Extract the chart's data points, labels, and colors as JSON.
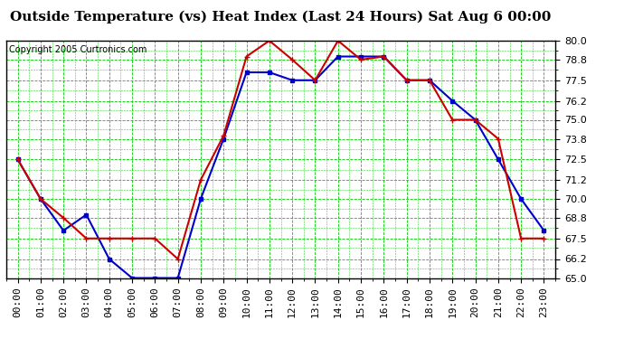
{
  "title": "Outside Temperature (vs) Heat Index (Last 24 Hours) Sat Aug 6 00:00",
  "copyright": "Copyright 2005 Curtronics.com",
  "x_labels": [
    "00:00",
    "01:00",
    "02:00",
    "03:00",
    "04:00",
    "05:00",
    "06:00",
    "07:00",
    "08:00",
    "09:00",
    "10:00",
    "11:00",
    "12:00",
    "13:00",
    "14:00",
    "15:00",
    "16:00",
    "17:00",
    "18:00",
    "19:00",
    "20:00",
    "21:00",
    "22:00",
    "23:00"
  ],
  "blue_data": [
    72.5,
    70.0,
    68.0,
    69.0,
    66.2,
    65.0,
    65.0,
    65.0,
    70.0,
    73.8,
    78.0,
    78.0,
    77.5,
    77.5,
    79.0,
    79.0,
    79.0,
    77.5,
    77.5,
    76.2,
    75.0,
    72.5,
    70.0,
    68.0
  ],
  "red_data": [
    72.5,
    70.0,
    68.8,
    67.5,
    67.5,
    67.5,
    67.5,
    66.2,
    71.2,
    74.0,
    79.0,
    80.0,
    78.8,
    77.5,
    80.0,
    78.8,
    79.0,
    77.5,
    77.5,
    75.0,
    75.0,
    73.8,
    67.5,
    67.5
  ],
  "ylim": [
    65.0,
    80.0
  ],
  "yticks": [
    65.0,
    66.2,
    67.5,
    68.8,
    70.0,
    71.2,
    72.5,
    73.8,
    75.0,
    76.2,
    77.5,
    78.8,
    80.0
  ],
  "blue_color": "#0000cc",
  "red_color": "#cc0000",
  "bg_color": "#ffffff",
  "plot_bg_color": "#ffffff",
  "grid_color": "#00cc00",
  "title_fontsize": 11,
  "tick_fontsize": 8,
  "copyright_fontsize": 7
}
